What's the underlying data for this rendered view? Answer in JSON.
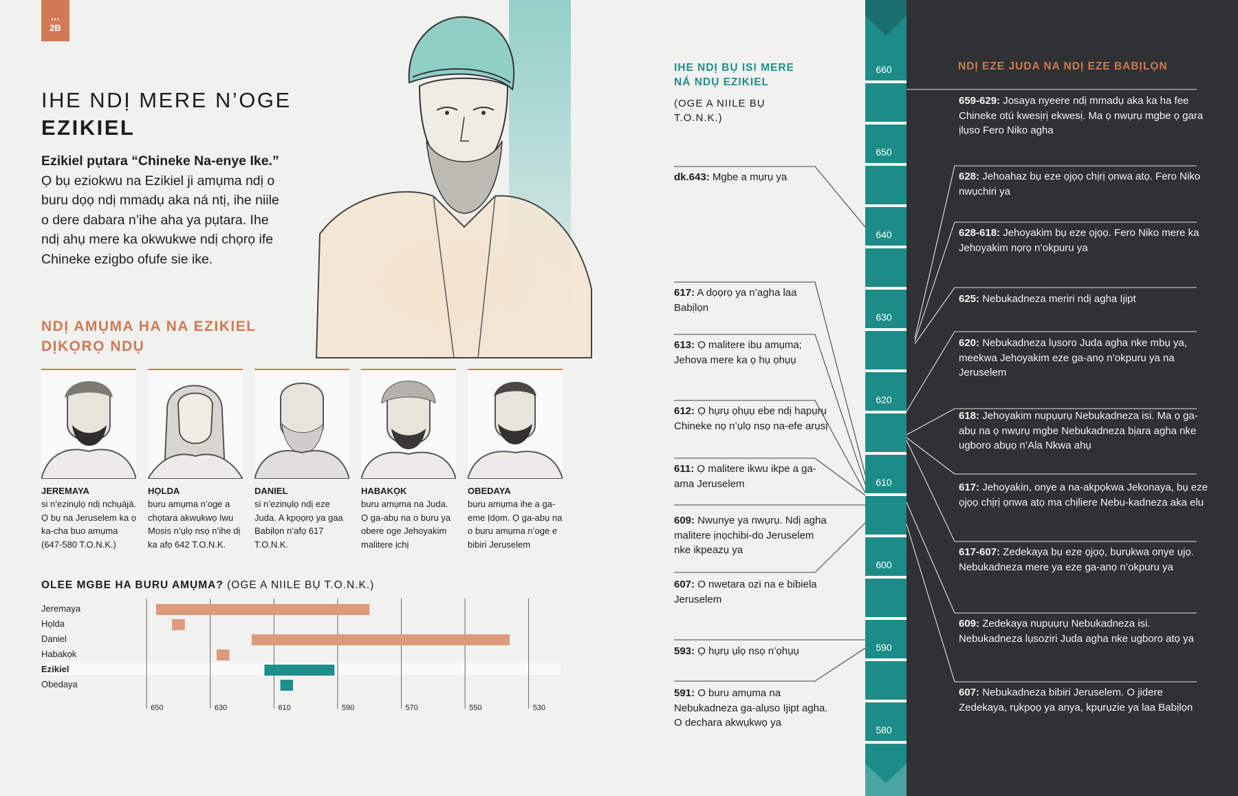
{
  "page": {
    "number": "2B",
    "dots": "•••"
  },
  "title": {
    "line1": "IHE NDỊ MERE N’OGE",
    "line2": "EZIKIEL"
  },
  "intro": {
    "lead": "Ezikiel pụtara “Chineke Na-enye Ike.”",
    "body": "Ọ bụ eziokwu na Ezikiel ji amụma ndị o buru dọọ ndị mmadụ aka ná ntị, ihe niile o dere dabara n’ihe aha ya pụtara. Ihe ndị ahụ mere ka okwukwe ndị chọrọ ife Chineke ezigbo ofufe sie ike."
  },
  "prophets": {
    "heading": "NDỊ AMỤMA HA NA EZIKIEL DỊKỌRỌ NDỤ",
    "items": [
      {
        "name": "JEREMAYA",
        "desc": "si n’ezinụlọ ndị nchụàjà. Ọ bụ na Jeruselem ka ọ ka-cha buo amụma (647-580 T.O.N.K.)"
      },
      {
        "name": "HỌLDA",
        "desc": "buru amụma n’oge a chọtara akwụkwọ Iwu Mosis n’ụlọ nsọ n’ihe dị ka afọ 642 T.O.N.K."
      },
      {
        "name": "DANIEL",
        "desc": "si n’ezinụlọ ndị eze Juda. A kpọọrọ ya gaa Babịlọn n’afọ 617 T.O.N.K."
      },
      {
        "name": "HABAKỌK",
        "desc": "buru amụma na Juda. Ọ ga-abụ na o buru ya obere oge Jehoyakim malitere ịchị"
      },
      {
        "name": "OBEDAYA",
        "desc": "buru amụma ihe a ga-eme Ịdọm. Ọ ga-abụ na o buru amụma n’oge e bibiri Jeruselem"
      }
    ]
  },
  "chart": {
    "title_bold": "OLEE MGBE HA BURU AMỤMA?",
    "title_rest": " (OGE A NIILE BỤ T.O.N.K.)"
  },
  "chart_data": {
    "type": "bar",
    "title": "OLEE MGBE HA BURU AMỤMA? (OGE A NIILE BỤ T.O.N.K.)",
    "x_ticks": [
      "650",
      "630",
      "610",
      "590",
      "570",
      "550",
      "530"
    ],
    "xlim": [
      655,
      520
    ],
    "categories": [
      "Jeremaya",
      "Họlda",
      "Daniel",
      "Habakọk",
      "Ezikiel",
      "Obedaya"
    ],
    "bars": [
      {
        "name": "Jeremaya",
        "start": 647,
        "end": 580,
        "color": "#dc9a7a"
      },
      {
        "name": "Họlda",
        "start": 642,
        "end": 638,
        "color": "#dc9a7a"
      },
      {
        "name": "Daniel",
        "start": 617,
        "end": 536,
        "color": "#dc9a7a"
      },
      {
        "name": "Habakọk",
        "start": 628,
        "end": 624,
        "color": "#dc9a7a"
      },
      {
        "name": "Ezikiel",
        "start": 613,
        "end": 591,
        "color": "#1f8e8a",
        "highlight": true
      },
      {
        "name": "Obedaya",
        "start": 608,
        "end": 604,
        "color": "#1f8e8a"
      }
    ]
  },
  "middle": {
    "heading": "IHE NDỊ BỤ ISI MERE NÁ NDỤ EZIKIEL",
    "sub": "(OGE A NIILE BỤ T.O.N.K.)",
    "events": [
      {
        "date": "dk.643:",
        "text": " Mgbe a mụrụ ya"
      },
      {
        "date": "617:",
        "text": " A dọọrọ ya n’agha laa Babịlọn"
      },
      {
        "date": "613:",
        "text": " Ọ malitere ibu amụma; Jehova mere ka ọ hụ ọhụụ"
      },
      {
        "date": "612:",
        "text": " Ọ hụrụ ọhụụ ebe ndị hapụrụ Chineke nọ n’ụlọ nsọ na-efe arụsị"
      },
      {
        "date": "611:",
        "text": " Ọ malitere ikwu ikpe a ga-ama Jeruselem"
      },
      {
        "date": "609:",
        "text": " Nwunye ya nwụrụ. Ndị agha malitere ịnọchibi-do Jeruselem nke ikpeazụ ya"
      },
      {
        "date": "607:",
        "text": " O nwetara ozi na e bibiela Jeruselem"
      },
      {
        "date": "593:",
        "text": " Ọ hụrụ ụlọ nsọ n’ọhụụ"
      },
      {
        "date": "591:",
        "text": " O buru amụma na Nebukadneza ga-alụso Ijipt agha. O dechara akwụkwọ ya"
      }
    ]
  },
  "timeline": {
    "labels": [
      "660",
      "650",
      "640",
      "630",
      "620",
      "610",
      "600",
      "590",
      "580"
    ],
    "color": "#1d8c88"
  },
  "right": {
    "heading": "NDỊ EZE JUDA NA NDỊ EZE BABỊLỌN",
    "events": [
      {
        "date": "659-629:",
        "text": " Josaya nyeere ndị mmadụ aka ka ha fee Chineke otú kwesịrị ekwesị. Ma ọ nwụrụ mgbe ọ gara ịlụso Fero Niko agha"
      },
      {
        "date": "628:",
        "text": " Jehoahaz bụ eze ọjọọ chịrị ọnwa atọ. Fero Niko nwụchiri ya"
      },
      {
        "date": "628-618:",
        "text": " Jehoyakim bụ eze ọjọọ. Fero Niko mere ka Jehoyakim nọrọ n’okpuru ya"
      },
      {
        "date": "625:",
        "text": " Nebukadneza meriri ndị agha Ijipt"
      },
      {
        "date": "620:",
        "text": " Nebukadneza lụsoro Juda agha nke mbụ ya, meekwa Jehoyakim eze ga-anọ n’okpuru ya na Jeruselem"
      },
      {
        "date": "618:",
        "text": " Jehoyakim nupụụrụ Nebukadneza isi. Ma ọ ga-abụ na ọ nwụrụ mgbe Nebukadneza bịara agha nke ugboro abụọ n’Ala Nkwa ahụ"
      },
      {
        "date": "617:",
        "text": " Jehoyakin, onye a na-akpọkwa Jekonaya, bụ eze ọjọọ chịrị ọnwa atọ ma chịliere Nebu-kadneza aka elu"
      },
      {
        "date": "617-607:",
        "text": " Zedekaya bụ eze ọjọọ, bụrụkwa onye ụjọ. Nebukadneza mere ya eze ga-anọ n’okpuru ya"
      },
      {
        "date": "609:",
        "text": " Zedekaya nupụụrụ Nebukadneza isi. Nebukadneza lụsoziri Juda agha nke ugboro atọ ya"
      },
      {
        "date": "607:",
        "text": " Nebukadneza bibiri Jeruselem. O jidere Zedekaya, rụkpọọ ya anya, kpụrụzie ya laa Babịlọn"
      }
    ]
  },
  "colors": {
    "accent": "#d07a55",
    "teal": "#1f8e8a",
    "dark_panel": "#2f3133"
  }
}
